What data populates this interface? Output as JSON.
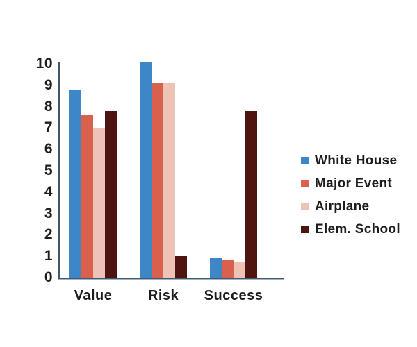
{
  "chart_data": {
    "type": "bar",
    "categories": [
      "Value",
      "Risk",
      "Success"
    ],
    "series": [
      {
        "name": "White House",
        "color": "#3d87c6",
        "values": [
          8.8,
          10.1,
          0.9
        ]
      },
      {
        "name": "Major Event",
        "color": "#d9604d",
        "values": [
          7.6,
          9.1,
          0.8
        ]
      },
      {
        "name": "Airplane",
        "color": "#eec3b6",
        "values": [
          7.0,
          9.1,
          0.7
        ]
      },
      {
        "name": "Elem. School",
        "color": "#4e1410",
        "values": [
          7.8,
          1.0,
          7.8
        ]
      }
    ],
    "title": "",
    "xlabel": "",
    "ylabel": "",
    "ylim": [
      0,
      10
    ],
    "yticks": [
      0,
      1,
      2,
      3,
      4,
      5,
      6,
      7,
      8,
      9,
      10
    ],
    "grid": false,
    "legend_position": "right",
    "axis_color": "#44566b",
    "text_color": "#1d1d1f",
    "background_color": "#ffffff"
  }
}
